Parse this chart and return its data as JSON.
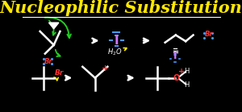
{
  "bg_color": "#000000",
  "title": "Nucleophilic Substitution",
  "title_color": "#FFE800",
  "title_fontsize": 15.0,
  "line_color": "#FFFFFF",
  "br_color": "#FF3333",
  "iodine_color": "#CC77FF",
  "green_color": "#22CC22",
  "yellow_color": "#FFEE00",
  "blue_color": "#4499FF"
}
